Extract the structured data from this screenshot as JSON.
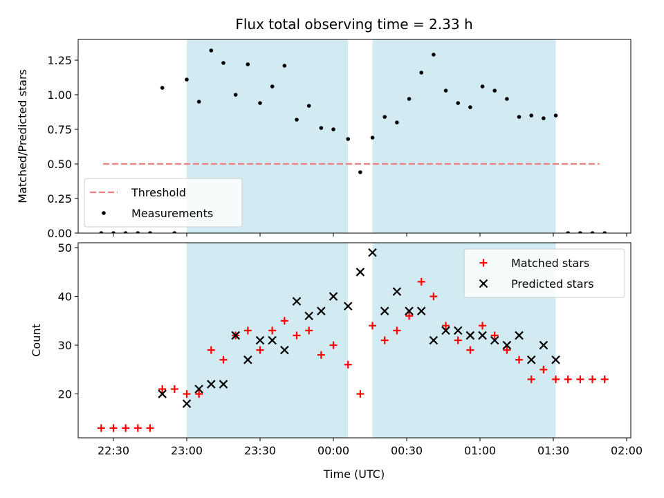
{
  "chart_data": {
    "type": "scatter",
    "title": "Flux total observing time = 2.33 h",
    "xlabel": "Time (UTC)",
    "x_ticks": [
      "22:30",
      "23:00",
      "23:30",
      "00:00",
      "00:30",
      "01:00",
      "01:30",
      "02:00"
    ],
    "shaded_intervals": [
      [
        "23:00",
        "00:06"
      ],
      [
        "00:16",
        "01:31"
      ]
    ],
    "shade_color": "#add8e6",
    "panels": [
      {
        "id": "ratio",
        "ylabel": "Matched/Predicted stars",
        "ylim": [
          0,
          1.4
        ],
        "y_ticks": [
          "0.00",
          "0.25",
          "0.50",
          "0.75",
          "1.00",
          "1.25"
        ],
        "y_tick_values": [
          0,
          0.25,
          0.5,
          0.75,
          1.0,
          1.25
        ],
        "legend_position": "lower-left",
        "threshold": {
          "name": "Threshold",
          "value": 0.5,
          "x_start": "22:30",
          "x_end": "01:50",
          "color": "#f08080",
          "style": "dashed"
        },
        "series": [
          {
            "name": "Measurements",
            "marker": "dot",
            "color": "#000000",
            "points": [
              [
                "22:25",
                0
              ],
              [
                "22:30",
                0
              ],
              [
                "22:35",
                0
              ],
              [
                "22:40",
                0
              ],
              [
                "22:45",
                0
              ],
              [
                "22:50",
                1.05
              ],
              [
                "22:55",
                0
              ],
              [
                "23:00",
                1.11
              ],
              [
                "23:05",
                0.95
              ],
              [
                "23:10",
                1.32
              ],
              [
                "23:15",
                1.23
              ],
              [
                "23:20",
                1.0
              ],
              [
                "23:25",
                1.22
              ],
              [
                "23:30",
                0.94
              ],
              [
                "23:35",
                1.06
              ],
              [
                "23:40",
                1.21
              ],
              [
                "23:45",
                0.82
              ],
              [
                "23:50",
                0.92
              ],
              [
                "23:55",
                0.76
              ],
              [
                "00:00",
                0.75
              ],
              [
                "00:06",
                0.68
              ],
              [
                "00:11",
                0.44
              ],
              [
                "00:16",
                0.69
              ],
              [
                "00:21",
                0.84
              ],
              [
                "00:26",
                0.8
              ],
              [
                "00:31",
                0.97
              ],
              [
                "00:36",
                1.16
              ],
              [
                "00:41",
                1.29
              ],
              [
                "00:46",
                1.03
              ],
              [
                "00:51",
                0.94
              ],
              [
                "00:56",
                0.91
              ],
              [
                "01:01",
                1.06
              ],
              [
                "01:06",
                1.03
              ],
              [
                "01:11",
                0.97
              ],
              [
                "01:16",
                0.84
              ],
              [
                "01:21",
                0.85
              ],
              [
                "01:26",
                0.83
              ],
              [
                "01:31",
                0.85
              ],
              [
                "01:36",
                0
              ],
              [
                "01:41",
                0
              ],
              [
                "01:46",
                0
              ],
              [
                "01:51",
                0
              ]
            ]
          }
        ]
      },
      {
        "id": "count",
        "ylabel": "Count",
        "ylim": [
          11,
          51
        ],
        "y_ticks": [
          "20",
          "30",
          "40",
          "50"
        ],
        "y_tick_values": [
          20,
          30,
          40,
          50
        ],
        "legend_position": "upper-right",
        "series": [
          {
            "name": "Matched stars",
            "marker": "plus",
            "color": "#ff0000",
            "points": [
              [
                "22:25",
                13
              ],
              [
                "22:30",
                13
              ],
              [
                "22:35",
                13
              ],
              [
                "22:40",
                13
              ],
              [
                "22:45",
                13
              ],
              [
                "22:50",
                21
              ],
              [
                "22:55",
                21
              ],
              [
                "23:00",
                20
              ],
              [
                "23:05",
                20
              ],
              [
                "23:10",
                29
              ],
              [
                "23:15",
                27
              ],
              [
                "23:20",
                32
              ],
              [
                "23:25",
                33
              ],
              [
                "23:30",
                29
              ],
              [
                "23:35",
                33
              ],
              [
                "23:40",
                35
              ],
              [
                "23:45",
                32
              ],
              [
                "23:50",
                33
              ],
              [
                "23:55",
                28
              ],
              [
                "00:00",
                30
              ],
              [
                "00:06",
                26
              ],
              [
                "00:11",
                20
              ],
              [
                "00:16",
                34
              ],
              [
                "00:21",
                31
              ],
              [
                "00:26",
                33
              ],
              [
                "00:31",
                36
              ],
              [
                "00:36",
                43
              ],
              [
                "00:41",
                40
              ],
              [
                "00:46",
                34
              ],
              [
                "00:51",
                31
              ],
              [
                "00:56",
                29
              ],
              [
                "01:01",
                34
              ],
              [
                "01:06",
                32
              ],
              [
                "01:11",
                29
              ],
              [
                "01:16",
                27
              ],
              [
                "01:21",
                23
              ],
              [
                "01:26",
                25
              ],
              [
                "01:31",
                23
              ],
              [
                "01:36",
                23
              ],
              [
                "01:41",
                23
              ],
              [
                "01:46",
                23
              ],
              [
                "01:51",
                23
              ]
            ]
          },
          {
            "name": "Predicted stars",
            "marker": "x",
            "color": "#000000",
            "points": [
              [
                "22:50",
                20
              ],
              [
                "23:00",
                18
              ],
              [
                "23:05",
                21
              ],
              [
                "23:10",
                22
              ],
              [
                "23:15",
                22
              ],
              [
                "23:20",
                32
              ],
              [
                "23:25",
                27
              ],
              [
                "23:30",
                31
              ],
              [
                "23:35",
                31
              ],
              [
                "23:40",
                29
              ],
              [
                "23:45",
                39
              ],
              [
                "23:50",
                36
              ],
              [
                "23:55",
                37
              ],
              [
                "00:00",
                40
              ],
              [
                "00:06",
                38
              ],
              [
                "00:11",
                45
              ],
              [
                "00:16",
                49
              ],
              [
                "00:21",
                37
              ],
              [
                "00:26",
                41
              ],
              [
                "00:31",
                37
              ],
              [
                "00:36",
                37
              ],
              [
                "00:41",
                31
              ],
              [
                "00:46",
                33
              ],
              [
                "00:51",
                33
              ],
              [
                "00:56",
                32
              ],
              [
                "01:01",
                32
              ],
              [
                "01:06",
                31
              ],
              [
                "01:11",
                30
              ],
              [
                "01:16",
                32
              ],
              [
                "01:21",
                27
              ],
              [
                "01:26",
                30
              ],
              [
                "01:31",
                27
              ]
            ]
          }
        ]
      }
    ]
  }
}
